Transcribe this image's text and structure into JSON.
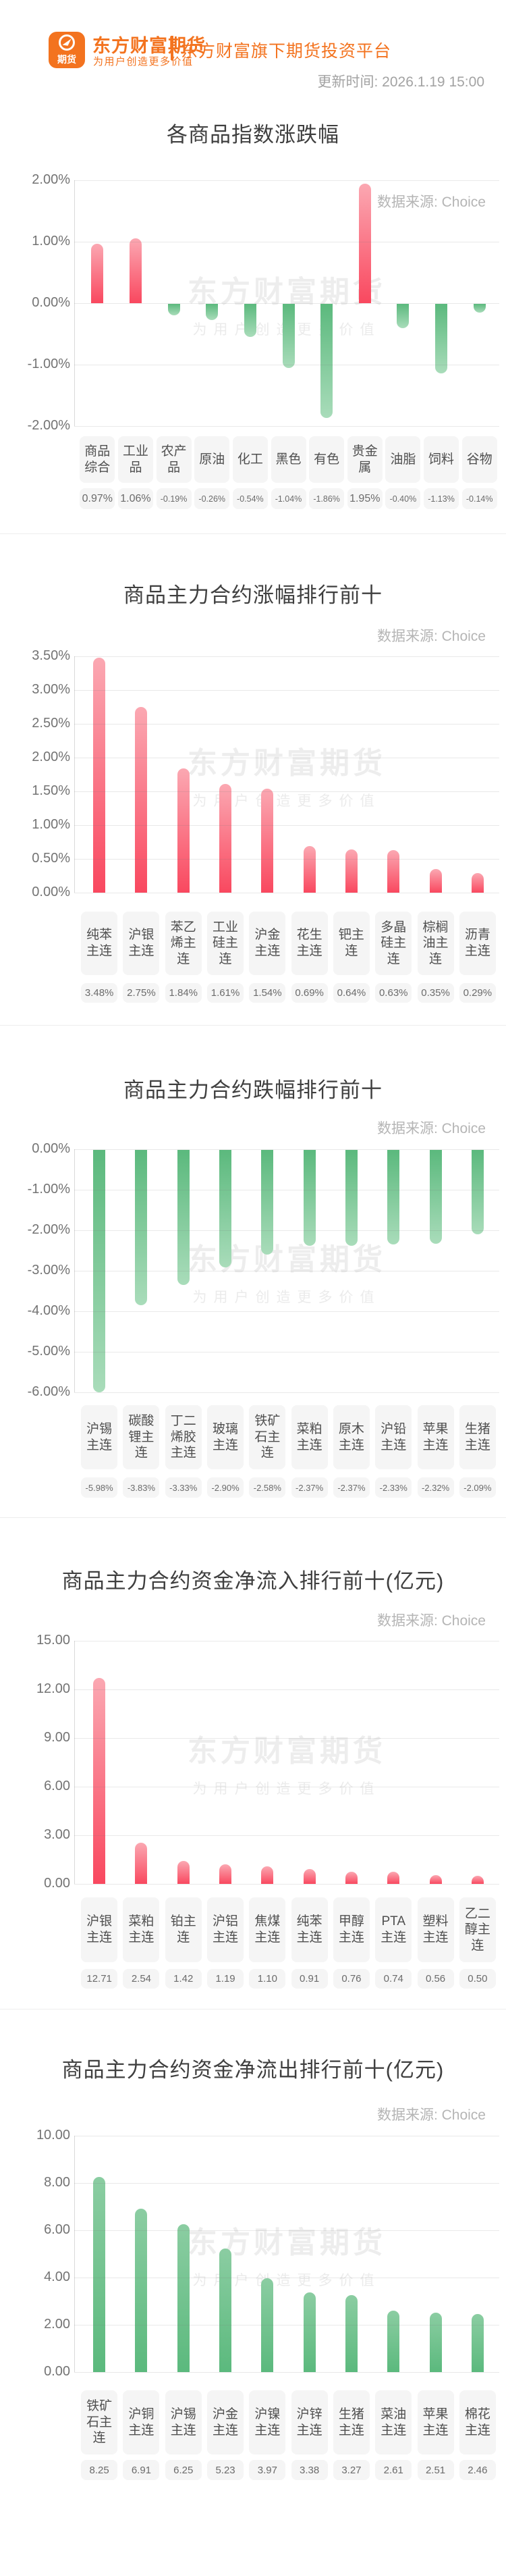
{
  "header": {
    "logo_text": "期货",
    "brand_title": "东方财富期货",
    "brand_slogan": "为用户创造更多价值",
    "platform_text": "东方财富旗下期货投资平台",
    "update_time": "更新时间: 2026.1.19 15:00"
  },
  "source_label": "数据来源: Choice",
  "watermark": {
    "line1": "东方财富期货",
    "line2": "为用户创造更多价值"
  },
  "colors": {
    "brand_orange": "#f3731f",
    "red_bar_light": "#fba8b2",
    "red_bar_dark": "#f9485f",
    "green_bar_light": "#a9dcba",
    "green_bar_mid": "#8bcda2",
    "green_bar_dark": "#5bb97d",
    "label_box_bg": "#f5f5f5"
  },
  "chart_data": [
    {
      "type": "bar",
      "title": "各商品指数涨跌幅",
      "categories": [
        "商品综合",
        "工业品",
        "农产品",
        "原油",
        "化工",
        "黑色",
        "有色",
        "贵金属",
        "油脂",
        "饲料",
        "谷物"
      ],
      "values": [
        0.97,
        1.06,
        -0.19,
        -0.26,
        -0.54,
        -1.04,
        -1.86,
        1.95,
        -0.4,
        -1.13,
        -0.14
      ],
      "value_labels": [
        "0.97%",
        "1.06%",
        "-0.19%",
        "-0.26%",
        "-0.54%",
        "-1.04%",
        "-1.86%",
        "1.95%",
        "-0.40%",
        "-1.13%",
        "-0.14%"
      ],
      "yticks": [
        "2.00%",
        "1.00%",
        "0.00%",
        "-1.00%",
        "-2.00%"
      ],
      "ylim": [
        -2,
        2
      ],
      "ylabel": "",
      "xlabel": "",
      "grid": true,
      "legend": "none",
      "color_mode": "by-sign"
    },
    {
      "type": "bar",
      "title": "商品主力合约涨幅排行前十",
      "categories": [
        "纯苯主连",
        "沪银主连",
        "苯乙烯主连",
        "工业硅主连",
        "沪金主连",
        "花生主连",
        "钯主连",
        "多晶硅主连",
        "棕榈油主连",
        "沥青主连"
      ],
      "values": [
        3.48,
        2.75,
        1.84,
        1.61,
        1.54,
        0.69,
        0.64,
        0.63,
        0.35,
        0.29
      ],
      "value_labels": [
        "3.48%",
        "2.75%",
        "1.84%",
        "1.61%",
        "1.54%",
        "0.69%",
        "0.64%",
        "0.63%",
        "0.35%",
        "0.29%"
      ],
      "yticks": [
        "3.50%",
        "3.00%",
        "2.50%",
        "2.00%",
        "1.50%",
        "1.00%",
        "0.50%",
        "0.00%"
      ],
      "ylim": [
        0,
        3.5
      ],
      "ylabel": "",
      "xlabel": "",
      "grid": true,
      "legend": "none",
      "color_mode": "red"
    },
    {
      "type": "bar",
      "title": "商品主力合约跌幅排行前十",
      "categories": [
        "沪锡主连",
        "碳酸锂主连",
        "丁二烯胶主连",
        "玻璃主连",
        "铁矿石主连",
        "菜粕主连",
        "原木主连",
        "沪铅主连",
        "苹果主连",
        "生猪主连"
      ],
      "values": [
        -5.98,
        -3.83,
        -3.33,
        -2.9,
        -2.58,
        -2.37,
        -2.37,
        -2.33,
        -2.32,
        -2.09
      ],
      "value_labels": [
        "-5.98%",
        "-3.83%",
        "-3.33%",
        "-2.90%",
        "-2.58%",
        "-2.37%",
        "-2.37%",
        "-2.33%",
        "-2.32%",
        "-2.09%"
      ],
      "yticks": [
        "0.00%",
        "-1.00%",
        "-2.00%",
        "-3.00%",
        "-4.00%",
        "-5.00%",
        "-6.00%"
      ],
      "ylim": [
        -6,
        0
      ],
      "ylabel": "",
      "xlabel": "",
      "grid": true,
      "legend": "none",
      "color_mode": "green"
    },
    {
      "type": "bar",
      "title": "商品主力合约资金净流入排行前十(亿元)",
      "categories": [
        "沪银主连",
        "菜粕主连",
        "铂主连",
        "沪铝主连",
        "焦煤主连",
        "纯苯主连",
        "甲醇主连",
        "PTA主连",
        "塑料主连",
        "乙二醇主连"
      ],
      "values": [
        12.71,
        2.54,
        1.42,
        1.19,
        1.1,
        0.91,
        0.76,
        0.74,
        0.56,
        0.5
      ],
      "value_labels": [
        "12.71",
        "2.54",
        "1.42",
        "1.19",
        "1.10",
        "0.91",
        "0.76",
        "0.74",
        "0.56",
        "0.50"
      ],
      "yticks": [
        "15.00",
        "12.00",
        "9.00",
        "6.00",
        "3.00",
        "0.00"
      ],
      "ylim": [
        0,
        15
      ],
      "ylabel": "",
      "xlabel": "",
      "grid": true,
      "legend": "none",
      "color_mode": "red"
    },
    {
      "type": "bar",
      "title": "商品主力合约资金净流出排行前十(亿元)",
      "categories": [
        "铁矿石主连",
        "沪铜主连",
        "沪锡主连",
        "沪金主连",
        "沪镍主连",
        "沪锌主连",
        "生猪主连",
        "菜油主连",
        "苹果主连",
        "棉花主连"
      ],
      "values": [
        8.25,
        6.91,
        6.25,
        5.23,
        3.97,
        3.38,
        3.27,
        2.61,
        2.51,
        2.46
      ],
      "value_labels": [
        "8.25",
        "6.91",
        "6.25",
        "5.23",
        "3.97",
        "3.38",
        "3.27",
        "2.61",
        "2.51",
        "2.46"
      ],
      "yticks": [
        "10.00",
        "8.00",
        "6.00",
        "4.00",
        "2.00",
        "0.00"
      ],
      "ylim": [
        0,
        10
      ],
      "ylabel": "",
      "xlabel": "",
      "grid": true,
      "legend": "none",
      "color_mode": "green"
    }
  ]
}
